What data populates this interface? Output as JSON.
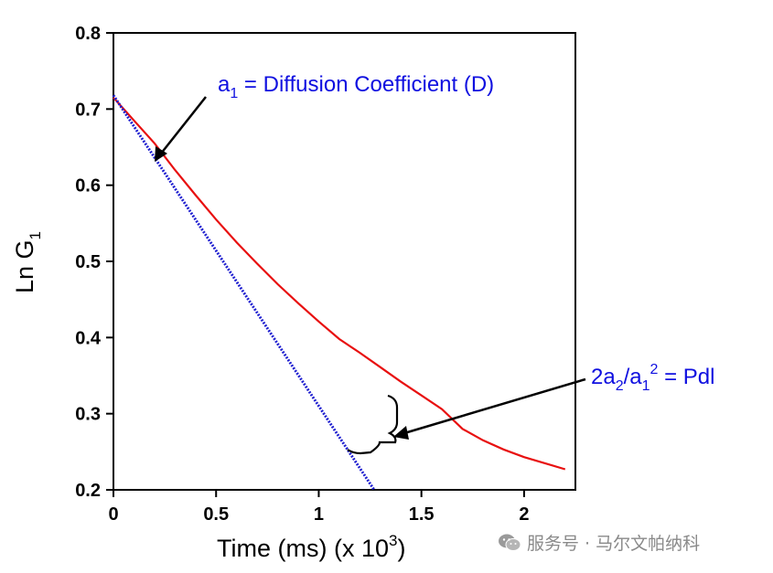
{
  "chart_data": {
    "type": "line",
    "xlabel": "Time (ms) (x 10",
    "xlabel_sup": "3",
    "xlabel_end": ")",
    "ylabel": "Ln G",
    "ylabel_sub": "1",
    "xlim": [
      0,
      2.25
    ],
    "ylim": [
      0.2,
      0.8
    ],
    "x_ticks": [
      0,
      0.5,
      1,
      1.5,
      2
    ],
    "x_tick_labels": [
      "0",
      "0.5",
      "1",
      "1.5",
      "2"
    ],
    "y_ticks": [
      0.2,
      0.3,
      0.4,
      0.5,
      0.6,
      0.7,
      0.8
    ],
    "y_tick_labels": [
      "0.2",
      "0.3",
      "0.4",
      "0.5",
      "0.6",
      "0.7",
      "0.8"
    ],
    "grid": false,
    "series": [
      {
        "color": "#e81010",
        "style": "solid",
        "x": [
          0,
          0.1,
          0.2,
          0.3,
          0.4,
          0.5,
          0.6,
          0.7,
          0.8,
          0.9,
          1.0,
          1.1,
          1.2,
          1.3,
          1.4,
          1.5,
          1.6,
          1.7,
          1.8,
          1.9,
          2.0,
          2.1,
          2.2
        ],
        "y": [
          0.715,
          0.685,
          0.655,
          0.62,
          0.587,
          0.555,
          0.525,
          0.497,
          0.47,
          0.445,
          0.421,
          0.398,
          0.38,
          0.361,
          0.342,
          0.324,
          0.306,
          0.28,
          0.265,
          0.253,
          0.243,
          0.235,
          0.227
        ]
      },
      {
        "color": "#2020d0",
        "style": "dotted",
        "x": [
          0,
          1.27
        ],
        "y": [
          0.718,
          0.2
        ]
      }
    ],
    "annotations": [
      {
        "text": "a",
        "sub": "1",
        "rest": " = Diffusion Coefficient (D)",
        "color": "#1010e0"
      },
      {
        "text": "2a",
        "sub": "2",
        "mid": "/a",
        "sub2": "1",
        "sup": "2",
        "rest": " = Pdl",
        "color": "#1010e0"
      }
    ]
  },
  "watermark": {
    "icon": "wechat-icon",
    "text": "服务号 · 马尔文帕纳科"
  }
}
